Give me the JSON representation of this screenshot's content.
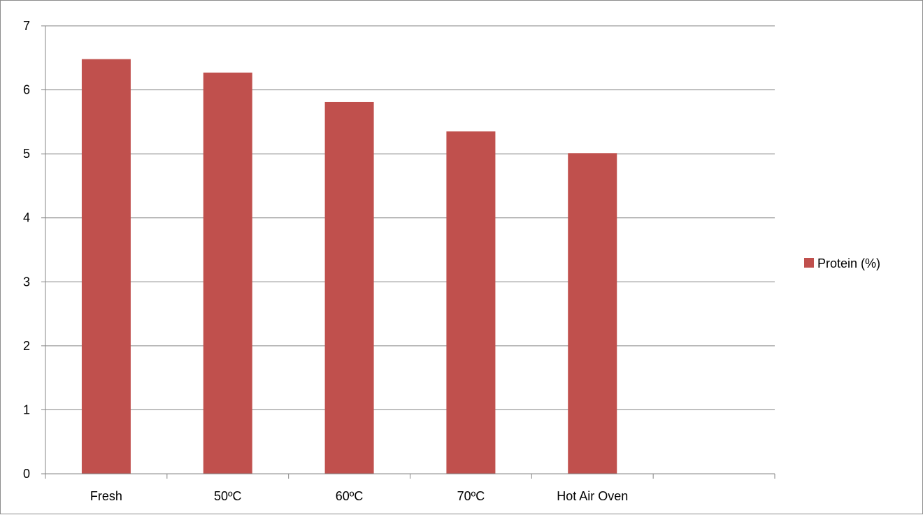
{
  "chart_data": {
    "type": "bar",
    "categories": [
      "Fresh",
      "50ºC",
      "60ºC",
      "70ºC",
      "Hot Air Oven",
      ""
    ],
    "series": [
      {
        "name": "Protein (%)",
        "values": [
          6.48,
          6.27,
          5.81,
          5.35,
          5.01,
          null
        ],
        "color": "#c0504d"
      }
    ],
    "title": "",
    "xlabel": "",
    "ylabel": "",
    "ylim": [
      0,
      7
    ],
    "yticks": [
      0,
      1,
      2,
      3,
      4,
      5,
      6,
      7
    ],
    "grid": true,
    "legend_position": "right"
  },
  "colors": {
    "bar": "#c0504d",
    "grid": "#868686",
    "axis": "#868686",
    "frame": "#8c8c8c"
  }
}
